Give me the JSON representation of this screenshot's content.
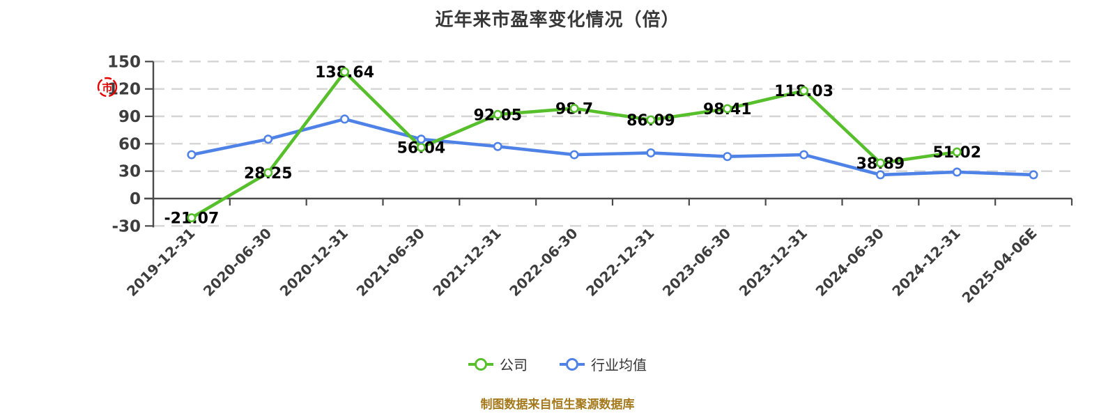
{
  "title": "近年来市盈率变化情况（倍）",
  "chart_data": {
    "type": "line",
    "title": "近年来市盈率变化情况（倍）",
    "categories": [
      "2019-12-31",
      "2020-06-30",
      "2020-12-31",
      "2021-06-30",
      "2021-12-31",
      "2022-06-30",
      "2022-12-31",
      "2023-06-30",
      "2023-12-31",
      "2024-06-30",
      "2024-12-31",
      "2025-04-06E"
    ],
    "ylim": [
      -30,
      150
    ],
    "yticks": [
      150,
      120,
      90,
      60,
      30,
      0,
      -30
    ],
    "grid": "horizontal-dashed",
    "legend_position": "bottom-center",
    "series": [
      {
        "name": "公司",
        "color": "#56BF2B",
        "point_fill": "#FFFFFF",
        "values": [
          -21.07,
          28.25,
          138.64,
          56.04,
          92.05,
          98.7,
          86.09,
          98.41,
          118.03,
          38.89,
          51.02,
          null
        ],
        "data_labels": [
          "-21.07",
          "28.25",
          "138.64",
          "56.04",
          "92.05",
          "98.7",
          "86.09",
          "98.41",
          "118.03",
          "38.89",
          "51.02",
          ""
        ]
      },
      {
        "name": "行业均值",
        "color": "#4E82E6",
        "point_fill": "#FFFFFF",
        "values": [
          48,
          65,
          87,
          65,
          57,
          48,
          50,
          46,
          48,
          26,
          29,
          26
        ],
        "data_labels": []
      }
    ],
    "colors": {
      "grid": "#D4D4D4",
      "axis": "#4A4A4A",
      "axis_label": "#3D3D3D",
      "data_label": "#000000"
    }
  },
  "stamp": {
    "char": "市",
    "color": "#E60000"
  },
  "footer": {
    "source": "制图数据来自恒生聚源数据库",
    "color": "#A5791B"
  }
}
